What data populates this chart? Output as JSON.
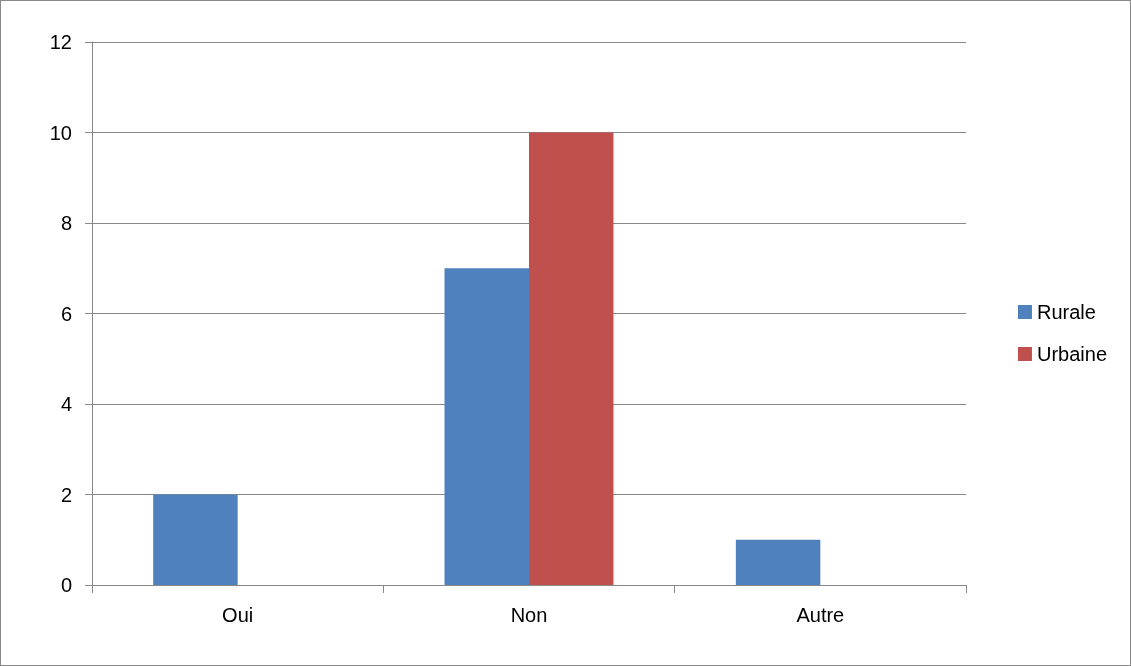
{
  "chart_data": {
    "type": "bar",
    "categories": [
      "Oui",
      "Non",
      "Autre"
    ],
    "series": [
      {
        "name": "Rurale",
        "color": "#4f81bd",
        "values": [
          2,
          7,
          1
        ]
      },
      {
        "name": "Urbaine",
        "color": "#c0504d",
        "values": [
          0,
          10,
          0
        ]
      }
    ],
    "ylim": [
      0,
      12
    ],
    "yticks": [
      0,
      2,
      4,
      6,
      8,
      10,
      12
    ],
    "grid": "y",
    "legend": "right"
  }
}
